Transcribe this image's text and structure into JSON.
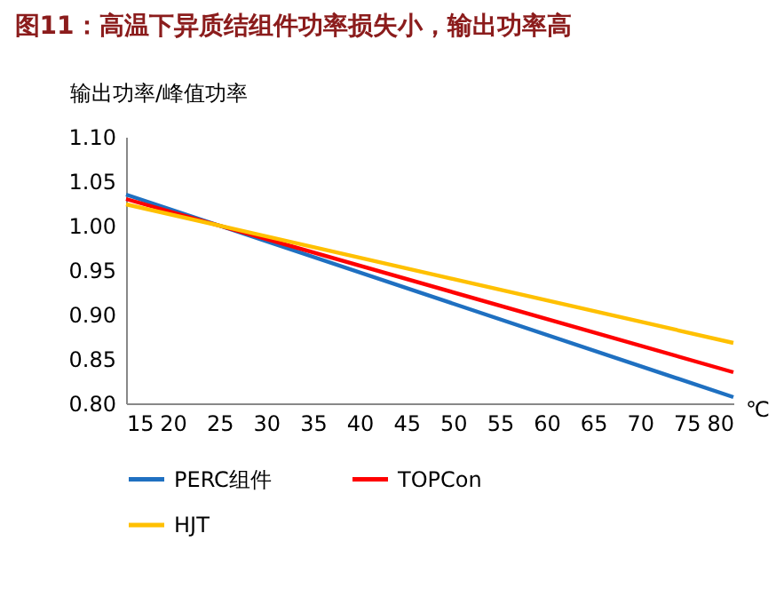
{
  "chart_data": {
    "type": "line",
    "title": "图11：高温下异质结组件功率损失小，输出功率高",
    "ylabel": "输出功率/峰值功率",
    "xlabel": "℃",
    "x": [
      15,
      25,
      80
    ],
    "series": [
      {
        "name": "PERC组件",
        "color": "#1f70c1",
        "values": [
          1.035,
          1.0,
          0.807
        ]
      },
      {
        "name": "TOPCon",
        "color": "#ff0000",
        "values": [
          1.03,
          1.0,
          0.835
        ]
      },
      {
        "name": "HJT",
        "color": "#ffc000",
        "values": [
          1.024,
          1.0,
          0.868
        ]
      }
    ],
    "xlim": [
      15,
      80
    ],
    "xticks": [
      15,
      20,
      25,
      30,
      35,
      40,
      45,
      50,
      55,
      60,
      65,
      70,
      75,
      80
    ],
    "ylim": [
      0.8,
      1.1
    ],
    "yticks": [
      {
        "value": 0.8,
        "label": "0.80"
      },
      {
        "value": 0.85,
        "label": "0.85"
      },
      {
        "value": 0.9,
        "label": "0.90"
      },
      {
        "value": 0.95,
        "label": "0.95"
      },
      {
        "value": 1.0,
        "label": "1.00"
      },
      {
        "value": 1.05,
        "label": "1.05"
      },
      {
        "value": 1.1,
        "label": "1.10"
      }
    ],
    "grid": false,
    "legend": "bottom",
    "marker": "none",
    "line_style": "solid"
  }
}
